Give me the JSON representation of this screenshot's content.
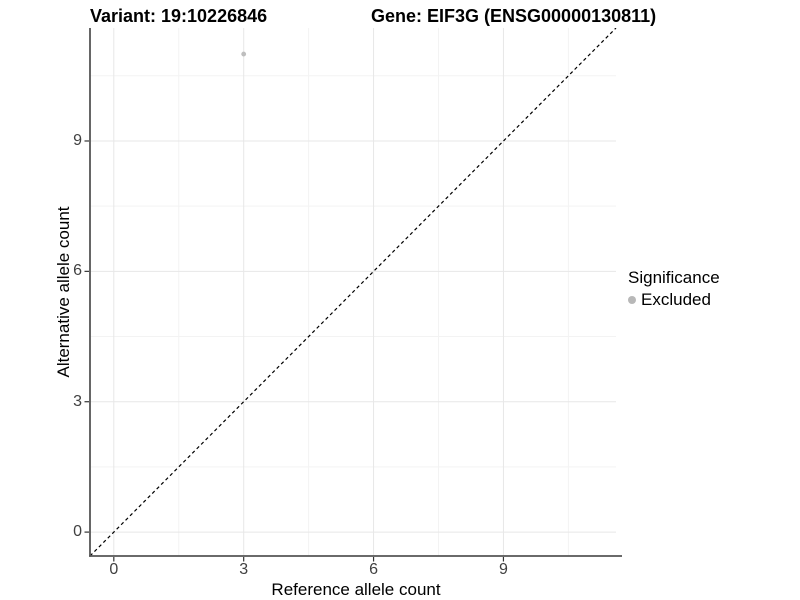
{
  "titles": {
    "variant": "Variant: 19:10226846",
    "gene": "Gene: EIF3G (ENSG00000130811)"
  },
  "axes": {
    "x": {
      "label": "Reference allele count",
      "tick_labels": [
        "0",
        "3",
        "6",
        "9"
      ]
    },
    "y": {
      "label": "Alternative allele count",
      "tick_labels": [
        "0",
        "3",
        "6",
        "9"
      ]
    }
  },
  "legend": {
    "title": "Significance",
    "items": [
      {
        "label": "Excluded",
        "color": "#b8b8b8"
      }
    ]
  },
  "colors": {
    "point": "#bebebe",
    "grid_major": "#e7e7e7",
    "grid_minor": "#f3f3f3",
    "axis_line": "#555555",
    "tick_mark": "#333333",
    "reference_line": "#000000"
  },
  "chart_data": {
    "type": "scatter",
    "title_left": "Variant: 19:10226846",
    "title_right": "Gene: EIF3G (ENSG00000130811)",
    "xlabel": "Reference allele count",
    "ylabel": "Alternative allele count",
    "xlim": [
      -0.55,
      11.6
    ],
    "ylim": [
      -0.55,
      11.6
    ],
    "x_ticks": [
      0,
      3,
      6,
      9
    ],
    "y_ticks": [
      0,
      3,
      6,
      9
    ],
    "x_minor_ticks": [
      1.5,
      4.5,
      7.5,
      10.5
    ],
    "y_minor_ticks": [
      1.5,
      4.5,
      7.5,
      10.5
    ],
    "grid": true,
    "legend_position": "right",
    "reference_line": {
      "type": "identity",
      "style": "dashed",
      "from": [
        -0.55,
        -0.55
      ],
      "to": [
        11.6,
        11.6
      ]
    },
    "series": [
      {
        "name": "Excluded",
        "color": "#bebebe",
        "points": [
          {
            "x": 3,
            "y": 11
          }
        ]
      }
    ]
  }
}
